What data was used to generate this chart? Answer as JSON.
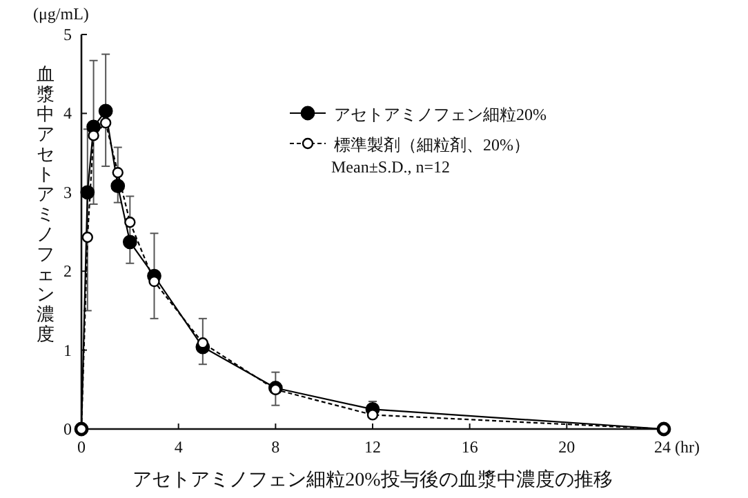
{
  "chart_data": {
    "type": "line",
    "title": "アセトアミノフェン細粒20%投与後の血漿中濃度の推移",
    "ylabel": "血漿中アセトアミノフェン濃度",
    "annotations": [
      "(μg/mL)",
      "Mean±S.D., n=12"
    ],
    "x": [
      0,
      0.25,
      0.5,
      1,
      1.5,
      2,
      3,
      5,
      8,
      12,
      24
    ],
    "series": [
      {
        "name": "アセトアミノフェン細粒20%",
        "color": "#000000",
        "line_style": "solid",
        "values": [
          0,
          3.0,
          3.83,
          4.03,
          3.08,
          2.37,
          1.94,
          1.04,
          0.52,
          0.25,
          0
        ],
        "errors": [
          null,
          [
            1.5,
            3.8
          ],
          [
            2.85,
            4.67
          ],
          [
            3.33,
            4.75
          ],
          [
            2.87,
            3.57
          ],
          [
            2.1,
            2.95
          ],
          [
            1.4,
            2.48
          ],
          [
            0.82,
            1.4
          ],
          [
            0.3,
            0.72
          ],
          [
            0.15,
            0.35
          ],
          null
        ]
      },
      {
        "name": "標準製剤（細粒剤、20%）",
        "color": "#000000",
        "line_style": "dashed",
        "values": [
          0,
          2.43,
          3.72,
          3.88,
          3.25,
          2.62,
          1.87,
          1.09,
          0.5,
          0.18,
          0
        ]
      }
    ],
    "xlim": [
      0,
      24
    ],
    "ylim": [
      0,
      5
    ],
    "xticks": [
      0,
      4,
      8,
      12,
      16,
      20,
      {
        "value": 24,
        "label": "24 (hr)"
      }
    ],
    "yticks": [
      0,
      1,
      2,
      3,
      4,
      5
    ],
    "marker": "circle",
    "legend": "top right",
    "grid": false
  }
}
